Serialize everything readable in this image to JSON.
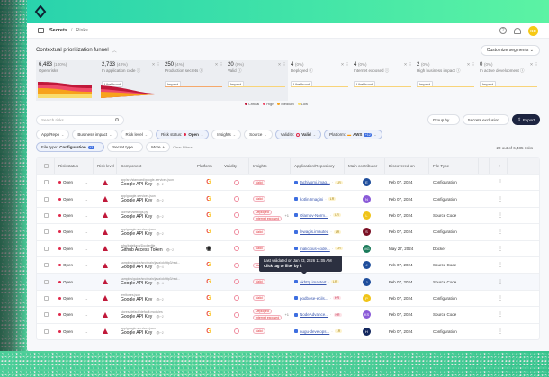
{
  "header": {
    "breadcrumb": {
      "section": "Secrets",
      "separator": "/",
      "page": "Risks"
    },
    "user_initials": "KC",
    "icons": [
      "help-icon",
      "bell-icon"
    ]
  },
  "funnel": {
    "title": "Contextual prioritization funnel",
    "customize_label": "Customize segments",
    "segments": [
      {
        "value": "6,483",
        "pct": "(100%)",
        "label": "Open risks",
        "tag": ""
      },
      {
        "value": "2,733",
        "pct": "(42%)",
        "label": "In application code",
        "tag": "Likelihood"
      },
      {
        "value": "250",
        "pct": "(4%)",
        "label": "Production secrets",
        "tag": "Impact"
      },
      {
        "value": "20",
        "pct": "(0%)",
        "label": "Valid",
        "tag": "Impact"
      },
      {
        "value": "4",
        "pct": "(0%)",
        "label": "Deployed",
        "tag": "Likelihood"
      },
      {
        "value": "4",
        "pct": "(0%)",
        "label": "Internet exposed",
        "tag": "Likelihood"
      },
      {
        "value": "2",
        "pct": "(0%)",
        "label": "High business impact",
        "tag": "Impact"
      },
      {
        "value": "0",
        "pct": "(0%)",
        "label": "In active development",
        "tag": "Impact"
      }
    ],
    "legend": [
      {
        "label": "Critical",
        "color": "#c0183a"
      },
      {
        "label": "High",
        "color": "#ef4b6a"
      },
      {
        "label": "Medium",
        "color": "#f7a21b"
      },
      {
        "label": "Low",
        "color": "#f9dc6b"
      }
    ]
  },
  "toolbar": {
    "search_placeholder": "Search risks...",
    "group_by": "Group by",
    "secrets_exclusion": "Secrets exclusion",
    "export": "Export"
  },
  "filters": {
    "app_repo": "App/Repo",
    "business_impact": "Business impact",
    "risk_level": "Risk level",
    "risk_status_label": "Risk status:",
    "risk_status_value": "Open",
    "insights": "Insights",
    "source": "Source",
    "validity_label": "Validity:",
    "validity_value": "Valid",
    "platform_label": "Platform:",
    "platform_value": "AWS",
    "platform_badge": "+12",
    "file_type_label": "File type:",
    "file_type_value": "Configuration",
    "file_type_badge": "+3",
    "secret_type": "Secret type",
    "more": "More",
    "clear": "Clear Filters"
  },
  "results_count": "20 out of 6,485 risks",
  "table": {
    "columns": [
      "Risk status",
      "Risk level",
      "Component",
      "Platform",
      "Validity",
      "Insights",
      "Application/Repository",
      "Main contributor",
      "Discovered on",
      "File Type"
    ],
    "rows": [
      {
        "status": "Open",
        "path": "app/src/standard/google-services.json",
        "name": "Google API Key",
        "count": "~2",
        "platform": "G",
        "insights": [
          "Valid"
        ],
        "more": "",
        "app": "tachiyomi.imag...",
        "level": "LR",
        "avatar": "E",
        "avatar_color": "#1f4e9c",
        "date": "Feb 07, 2024",
        "type": "Configuration"
      },
      {
        "status": "Open",
        "path": "app/google-services.json",
        "name": "Google API Key",
        "count": "~2",
        "platform": "G",
        "insights": [
          "Valid"
        ],
        "more": "",
        "app": "kotlin.Imagini",
        "level": "LR",
        "avatar": "N",
        "avatar_color": "#8a5ad8",
        "date": "Feb 07, 2024",
        "type": "Configuration"
      },
      {
        "status": "Open",
        "path": "Norman/settings.py",
        "name": "Google API Key",
        "count": "~2",
        "platform": "G",
        "insights": [
          "Deployed",
          "Internet exposed"
        ],
        "more": "+1",
        "app": "Olamov-Norm...",
        "level": "LR",
        "avatar": "L",
        "avatar_color": "#f0c419",
        "date": "Feb 07, 2024",
        "type": "Source Code"
      },
      {
        "status": "Open",
        "path": "app/google-services.json",
        "name": "Google API Key",
        "count": "~2",
        "platform": "G",
        "insights": [
          "Valid"
        ],
        "more": "",
        "app": "lewagis.imauted",
        "level": "LR",
        "avatar": "S",
        "avatar_color": "#7a1024",
        "date": "Feb 07, 2024",
        "type": "Configuration"
      },
      {
        "status": "Open",
        "path": "infra/bateljava/Dockerfile",
        "name": "Github Access Token",
        "count": "~2",
        "platform": "GH",
        "insights": [
          "Valid"
        ],
        "more": "",
        "app": "malicious-code...",
        "level": "LR",
        "avatar": "MG",
        "avatar_color": "#1a7a5a",
        "date": "May 27, 2024",
        "type": "Docker"
      },
      {
        "status": "Open",
        "path": "samples/guide/src/main/java/okhttp3/reci...",
        "name": "Google API Key",
        "count": "~4",
        "platform": "G",
        "insights": [
          "Valid"
        ],
        "more": "",
        "app": "okhttp.imaxtert",
        "level": "LR",
        "avatar": "J",
        "avatar_color": "#1f4e9c",
        "date": "Feb 07, 2024",
        "type": "Source Code"
      },
      {
        "status": "Open",
        "path": "samples/guide/src/main/java/okhttp3/reci...",
        "name": "Google API Key",
        "count": "~4",
        "platform": "G",
        "insights": [
          "Valid"
        ],
        "more": "",
        "app": "okhttp.imaxtert",
        "level": "LR",
        "avatar": "J",
        "avatar_color": "#1f4e9c",
        "date": "Feb 07, 2024",
        "type": "Source Code"
      },
      {
        "status": "Open",
        "path": "territories.json",
        "name": "Google API Key",
        "count": "~2",
        "platform": "G",
        "insights": [
          "Valid"
        ],
        "more": "",
        "app": "podbose-ecils...",
        "level": "HR",
        "avatar": "P",
        "avatar_color": "#f0c419",
        "date": "Feb 07, 2024",
        "type": "Configuration"
      },
      {
        "status": "Open",
        "path": "stores/default/default.modules",
        "name": "Google API Key",
        "count": "~2",
        "platform": "G",
        "insights": [
          "Deployed",
          "Internet exposed"
        ],
        "more": "+1",
        "app": "NodeAdvance...",
        "level": "HR",
        "avatar": "KS",
        "avatar_color": "#8a5ad8",
        "date": "Feb 07, 2024",
        "type": "Source Code"
      },
      {
        "status": "Open",
        "path": "app/google-services.json",
        "name": "Google API Key",
        "count": "~2",
        "platform": "G",
        "insights": [
          "Valid"
        ],
        "more": "",
        "app": "nugu-develops...",
        "level": "LR",
        "avatar": "H",
        "avatar_color": "#13275e",
        "date": "Feb 07, 2024",
        "type": "Configuration"
      }
    ]
  },
  "tooltip": {
    "line1": "Last validated on Jan 23, 2026 11:05 AM",
    "line2": "Click tag to filter by it"
  }
}
